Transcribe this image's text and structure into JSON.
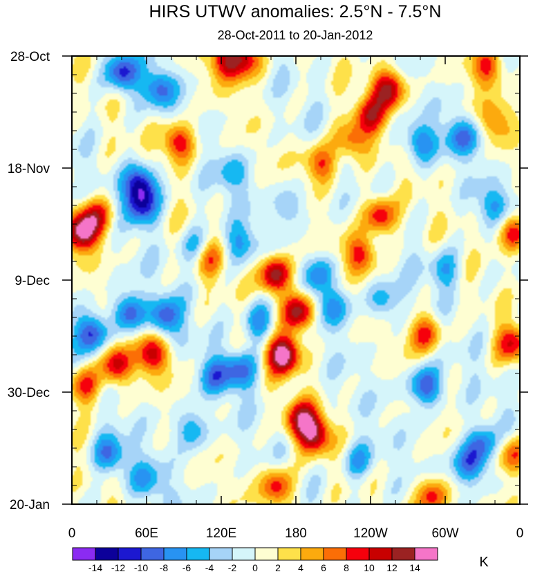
{
  "chart_data": {
    "type": "heatmap",
    "title": "HIRS UTWV anomalies: 2.5°N - 7.5°N",
    "subtitle": "28-Oct-2011 to 20-Jan-2012",
    "x_tick_labels": [
      "0",
      "60E",
      "120E",
      "180",
      "120W",
      "60W",
      "0"
    ],
    "x_tick_lon": [
      0,
      60,
      120,
      180,
      240,
      300,
      360
    ],
    "y_tick_labels": [
      "28-Oct",
      "18-Nov",
      "9-Dec",
      "30-Dec",
      "20-Jan"
    ],
    "y_tick_day": [
      0,
      21,
      42,
      63,
      84
    ],
    "xlim": [
      0,
      360
    ],
    "ylim_days": [
      0,
      84
    ],
    "colorbar_levels": [
      "-14",
      "-12",
      "-10",
      "-8",
      "-6",
      "-4",
      "-2",
      "0",
      "2",
      "4",
      "6",
      "8",
      "10",
      "12",
      "14"
    ],
    "colorbar_colors": [
      "#8b2bf2",
      "#0c009a",
      "#1c18d0",
      "#3e66e2",
      "#2893f2",
      "#16b8f2",
      "#a6d4f8",
      "#d5f5fa",
      "#fefed2",
      "#fee14a",
      "#fcaa0e",
      "#fb6e06",
      "#f6000c",
      "#c80000",
      "#9b2222",
      "#f575c8"
    ],
    "units": "K",
    "features": [
      {
        "lon": 170,
        "day": 56,
        "value": 16
      },
      {
        "lon": 163,
        "day": 41,
        "value": 14
      },
      {
        "lon": 182,
        "day": 48,
        "value": 14
      },
      {
        "lon": 195,
        "day": 71,
        "value": 13
      },
      {
        "lon": 183,
        "day": 68,
        "value": 10
      },
      {
        "lon": 8,
        "day": 33,
        "value": 14
      },
      {
        "lon": 20,
        "day": 30,
        "value": 9
      },
      {
        "lon": 35,
        "day": 58,
        "value": 11
      },
      {
        "lon": 10,
        "day": 62,
        "value": 9
      },
      {
        "lon": 255,
        "day": 6,
        "value": 13
      },
      {
        "lon": 240,
        "day": 11,
        "value": 9
      },
      {
        "lon": 248,
        "day": 30,
        "value": 11
      },
      {
        "lon": 232,
        "day": 37,
        "value": 9
      },
      {
        "lon": 125,
        "day": 1,
        "value": 10
      },
      {
        "lon": 140,
        "day": 0,
        "value": 10
      },
      {
        "lon": 85,
        "day": 16,
        "value": 11
      },
      {
        "lon": 65,
        "day": 56,
        "value": 10
      },
      {
        "lon": 200,
        "day": 20,
        "value": 9
      },
      {
        "lon": 225,
        "day": 16,
        "value": 8
      },
      {
        "lon": 355,
        "day": 33,
        "value": 10
      },
      {
        "lon": 355,
        "day": 54,
        "value": 9
      },
      {
        "lon": 355,
        "day": 75,
        "value": 8
      },
      {
        "lon": 335,
        "day": 2,
        "value": 8
      },
      {
        "lon": 285,
        "day": 52,
        "value": 9
      },
      {
        "lon": 165,
        "day": 81,
        "value": 10
      },
      {
        "lon": 290,
        "day": 83,
        "value": 10
      },
      {
        "lon": 110,
        "day": 38,
        "value": 7
      },
      {
        "lon": 340,
        "day": 12,
        "value": 6
      },
      {
        "lon": 40,
        "day": 3,
        "value": -11
      },
      {
        "lon": 55,
        "day": 24,
        "value": -13
      },
      {
        "lon": 55,
        "day": 28,
        "value": -10
      },
      {
        "lon": 70,
        "day": 6,
        "value": -8
      },
      {
        "lon": 45,
        "day": 48,
        "value": -10
      },
      {
        "lon": 15,
        "day": 52,
        "value": -10
      },
      {
        "lon": 75,
        "day": 49,
        "value": -9
      },
      {
        "lon": 150,
        "day": 50,
        "value": -8
      },
      {
        "lon": 135,
        "day": 59,
        "value": -8
      },
      {
        "lon": 115,
        "day": 60,
        "value": -7
      },
      {
        "lon": 285,
        "day": 62,
        "value": -11
      },
      {
        "lon": 320,
        "day": 77,
        "value": -10
      },
      {
        "lon": 330,
        "day": 73,
        "value": -8
      },
      {
        "lon": 30,
        "day": 75,
        "value": -9
      },
      {
        "lon": 280,
        "day": 16,
        "value": -8
      },
      {
        "lon": 315,
        "day": 15,
        "value": -8
      },
      {
        "lon": 340,
        "day": 28,
        "value": -6
      },
      {
        "lon": 210,
        "day": 47,
        "value": -7
      },
      {
        "lon": 250,
        "day": 46,
        "value": -6
      },
      {
        "lon": 135,
        "day": 35,
        "value": -6
      },
      {
        "lon": 100,
        "day": 36,
        "value": -6
      },
      {
        "lon": 200,
        "day": 41,
        "value": -7
      },
      {
        "lon": 300,
        "day": 40,
        "value": -6
      },
      {
        "lon": 95,
        "day": 70,
        "value": -7
      },
      {
        "lon": 60,
        "day": 80,
        "value": -6
      },
      {
        "lon": 130,
        "day": 22,
        "value": -5
      },
      {
        "lon": 175,
        "day": 28,
        "value": -5
      },
      {
        "lon": 230,
        "day": 76,
        "value": -6
      }
    ]
  }
}
